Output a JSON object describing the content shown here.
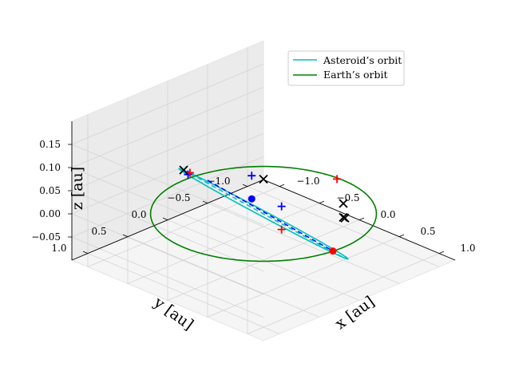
{
  "chart_data": {
    "type": "line",
    "title": "",
    "axes": {
      "x": {
        "label": "x [au]",
        "lim": [
          -1.2,
          1.2
        ],
        "ticks": [
          -1.0,
          -0.5,
          0.0,
          0.5,
          1.0
        ],
        "tick_labels": [
          "−1.0",
          "−0.5",
          "0.0",
          "0.5",
          "1.0"
        ]
      },
      "y": {
        "label": "y [au]",
        "lim": [
          -1.2,
          1.2
        ],
        "ticks": [
          -1.0,
          -0.5,
          0.0,
          0.5,
          1.0
        ],
        "tick_labels": [
          "−1.0",
          "−0.5",
          "0.0",
          "0.5",
          "1.0"
        ]
      },
      "z": {
        "label": "z [au]",
        "lim": [
          -0.1,
          0.2
        ],
        "ticks": [
          -0.05,
          0.0,
          0.05,
          0.1,
          0.15
        ],
        "tick_labels": [
          "−0.05",
          "0.00",
          "0.05",
          "0.10",
          "0.15"
        ]
      }
    },
    "grid": true,
    "legend_position": "upper-right",
    "series": [
      {
        "name": "Asteroid’s orbit",
        "color": "#00bfbf",
        "kind": "orbit",
        "a": 1.0,
        "e": 0.0,
        "inclination_deg": 9.6,
        "node_deg": 0
      },
      {
        "name": "Earth’s orbit",
        "color": "#008000",
        "kind": "orbit",
        "a": 1.0,
        "e": 0.0,
        "inclination_deg": 0,
        "node_deg": 0
      }
    ],
    "bodies": [
      {
        "kind": "asteroid-position",
        "color": "#0000ff",
        "xyz": [
          -0.85,
          -0.15,
          0.0
        ]
      },
      {
        "kind": "earth-position",
        "color": "#ff0000",
        "xyz": [
          0.99,
          0.12,
          0.0
        ]
      }
    ],
    "connectors": [
      {
        "kind": "asteroid-earth-line",
        "color": "#0000ff",
        "style": "dashed",
        "from": [
          -0.85,
          -0.15,
          0.0
        ],
        "to": [
          0.99,
          0.12,
          0.0
        ]
      },
      {
        "kind": "node-line",
        "color": "#00bfbf",
        "style": "dashed",
        "from": [
          0.0,
          1.0,
          0.167
        ],
        "to": [
          0.0,
          -1.0,
          -0.167
        ]
      }
    ],
    "markers": {
      "blue_plus": [
        [
          -0.7,
          0.7,
          0.118
        ],
        [
          -0.85,
          -0.15,
          0.05
        ],
        [
          0.99,
          0.12,
          0.05
        ]
      ],
      "red_plus": [
        [
          0.17,
          0.98,
          0.164
        ],
        [
          -0.17,
          -0.98,
          -0.0
        ],
        [
          0.99,
          0.12,
          0.0
        ]
      ],
      "black_x": [
        [
          0.0,
          1.0,
          0.167
        ],
        [
          0.0,
          0.0,
          0.075
        ],
        [
          0.0,
          -1.0,
          -0.05
        ],
        [
          0.0,
          -1.0,
          -0.08
        ],
        [
          0.02,
          -1.0,
          -0.08
        ]
      ]
    }
  }
}
